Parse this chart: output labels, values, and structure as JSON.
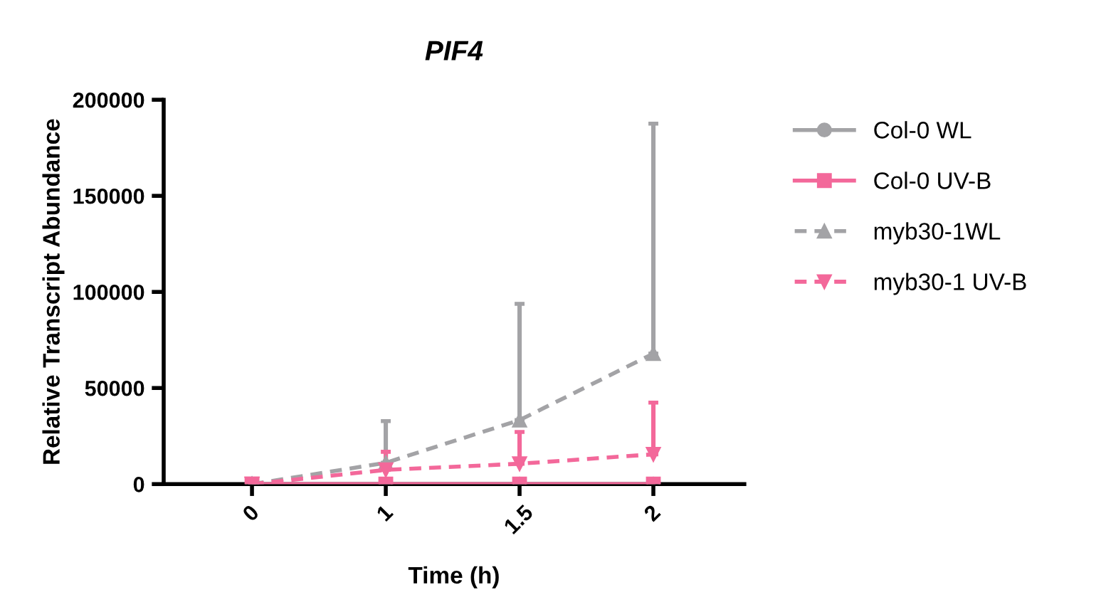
{
  "chart_data": {
    "type": "line",
    "title": "PIF4",
    "xlabel": "Time (h)",
    "ylabel": "Relative Transcript Abundance",
    "categories": [
      "0",
      "1",
      "1.5",
      "2"
    ],
    "ylim": [
      0,
      200000
    ],
    "yticks": [
      0,
      50000,
      100000,
      150000,
      200000
    ],
    "grid": false,
    "legend": "right",
    "series": [
      {
        "name": "Col-0 WL",
        "color": "#a3a3a6",
        "marker": "circle",
        "line_style": "solid",
        "values": [
          0,
          0,
          0,
          0
        ]
      },
      {
        "name": "Col-0 UV-B",
        "color": "#f3689a",
        "marker": "square",
        "line_style": "solid",
        "values": [
          0,
          0,
          0,
          0
        ]
      },
      {
        "name": "myb30-1WL",
        "color": "#a3a3a6",
        "marker": "triangle",
        "line_style": "dashed",
        "values": [
          0,
          11100,
          33300,
          67900
        ],
        "errors": [
          null,
          [
            11100,
            32800
          ],
          [
            33300,
            93800
          ],
          [
            67900,
            187600
          ]
        ]
      },
      {
        "name": "myb30-1 UV-B",
        "color": "#f3689a",
        "marker": "triangle_down",
        "line_style": "dashed",
        "values": [
          0,
          7400,
          10600,
          15500
        ],
        "errors": [
          null,
          [
            7400,
            16800
          ],
          [
            10600,
            27100
          ],
          [
            15500,
            42400
          ]
        ]
      }
    ]
  }
}
